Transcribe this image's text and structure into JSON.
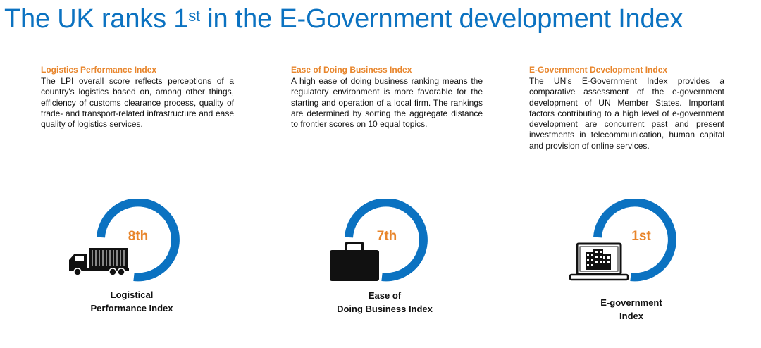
{
  "title": {
    "prefix": "The UK ranks 1",
    "superscript": "st",
    "suffix": " in the E-Government development Index"
  },
  "colors": {
    "title_blue": "#0b72c1",
    "accent_orange": "#e8852b",
    "ring_blue": "#0b72c1"
  },
  "columns": [
    {
      "heading": "Logistics Performance Index",
      "body": "The LPI overall score reflects perceptions of a country's logistics based on, among other things, efficiency of customs clearance process, quality of trade- and transport-related infrastructure and ease quality of logistics services."
    },
    {
      "heading": "Ease of Doing Business Index",
      "body": "A high ease of doing business ranking means the regulatory environment is more favorable for the starting and operation of a local firm. The rankings are determined by sorting the aggregate distance to frontier scores on 10 equal topics."
    },
    {
      "heading": "E-Government Development Index",
      "body": "The UN's E-Government Index provides a comparative assessment of the e-government development of UN Member States. Important factors contributing to a high level of e-government development are concurrent past and present investments in telecommunication, human capital and provision of online services."
    }
  ],
  "metrics": [
    {
      "rank": "8th",
      "label_line1": "Logistical",
      "label_line2": "Performance Index",
      "icon": "truck-icon"
    },
    {
      "rank": "7th",
      "label_line1": "Ease of",
      "label_line2": "Doing Business Index",
      "icon": "briefcase-icon"
    },
    {
      "rank": "1st",
      "label_line1": "E-government",
      "label_line2": "Index",
      "icon": "laptop-building-icon"
    }
  ]
}
